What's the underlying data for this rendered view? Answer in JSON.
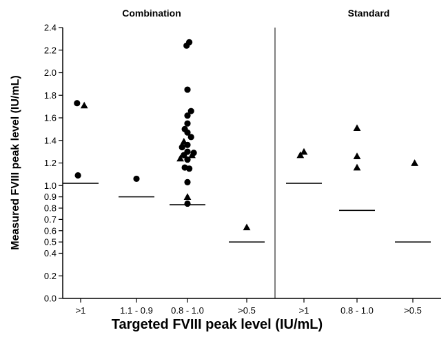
{
  "chart_data": {
    "type": "scatter",
    "title": "",
    "xlabel": "Targeted FVIII peak level (IU/mL)",
    "ylabel": "Measured  FVIII peak level (IU/mL)",
    "panels": [
      "Combination",
      "Standard"
    ],
    "categories": [
      ">1",
      "1.1 - 0.9",
      "0.8 - 1.0",
      ">0.5",
      ">1",
      "0.8 - 1.0",
      ">0.5"
    ],
    "yticks": [
      "0.0",
      "0.2",
      "0.4",
      "0.5",
      "0.6",
      "0.7",
      "0.8",
      "0.9",
      "1.0",
      "1.2",
      "1.4",
      "1.6",
      "1.8",
      "2.0",
      "2.2",
      "2.4"
    ],
    "ytick_values": [
      0.0,
      0.2,
      0.4,
      0.5,
      0.6,
      0.7,
      0.8,
      0.9,
      1.0,
      1.2,
      1.4,
      1.6,
      1.8,
      2.0,
      2.2,
      2.4
    ],
    "ylim": [
      0,
      2.4
    ],
    "grid": false,
    "series": [
      {
        "marker": "circle",
        "points": [
          {
            "cat": 0,
            "y": 1.73,
            "dx": -0.4
          },
          {
            "cat": 0,
            "y": 1.09,
            "dx": -0.3
          },
          {
            "cat": 1,
            "y": 1.06,
            "dx": 0.0
          },
          {
            "cat": 2,
            "y": 2.24,
            "dx": -0.1
          },
          {
            "cat": 2,
            "y": 2.27,
            "dx": 0.2
          },
          {
            "cat": 2,
            "y": 1.85,
            "dx": 0.0
          },
          {
            "cat": 2,
            "y": 1.66,
            "dx": 0.4
          },
          {
            "cat": 2,
            "y": 1.62,
            "dx": 0.0
          },
          {
            "cat": 2,
            "y": 1.55,
            "dx": 0.0
          },
          {
            "cat": 2,
            "y": 1.5,
            "dx": -0.3
          },
          {
            "cat": 2,
            "y": 1.47,
            "dx": 0.0
          },
          {
            "cat": 2,
            "y": 1.43,
            "dx": 0.4
          },
          {
            "cat": 2,
            "y": 1.36,
            "dx": 0.0
          },
          {
            "cat": 2,
            "y": 1.34,
            "dx": -0.6
          },
          {
            "cat": 2,
            "y": 1.3,
            "dx": 0.0
          },
          {
            "cat": 2,
            "y": 1.29,
            "dx": 0.7
          },
          {
            "cat": 2,
            "y": 1.27,
            "dx": -0.4
          },
          {
            "cat": 2,
            "y": 1.23,
            "dx": 0.0
          },
          {
            "cat": 2,
            "y": 1.16,
            "dx": -0.3
          },
          {
            "cat": 2,
            "y": 1.15,
            "dx": 0.2
          },
          {
            "cat": 2,
            "y": 1.03,
            "dx": 0.0
          },
          {
            "cat": 2,
            "y": 0.84,
            "dx": 0.0
          }
        ]
      },
      {
        "marker": "triangle",
        "points": [
          {
            "cat": 0,
            "y": 1.71,
            "dx": 0.4
          },
          {
            "cat": 2,
            "y": 1.39,
            "dx": -0.4
          },
          {
            "cat": 2,
            "y": 1.24,
            "dx": -0.8
          },
          {
            "cat": 2,
            "y": 1.27,
            "dx": 0.5
          },
          {
            "cat": 2,
            "y": 0.9,
            "dx": 0.0
          },
          {
            "cat": 3,
            "y": 0.63,
            "dx": 0.0
          },
          {
            "cat": 4,
            "y": 1.27,
            "dx": -0.4
          },
          {
            "cat": 4,
            "y": 1.3,
            "dx": 0.0
          },
          {
            "cat": 5,
            "y": 1.51,
            "dx": 0.0
          },
          {
            "cat": 5,
            "y": 1.26,
            "dx": 0.0
          },
          {
            "cat": 5,
            "y": 1.16,
            "dx": 0.0
          },
          {
            "cat": 6,
            "y": 1.2,
            "dx": 0.2
          }
        ]
      }
    ],
    "medians": [
      {
        "cat": 0,
        "y": 1.02
      },
      {
        "cat": 1,
        "y": 0.9
      },
      {
        "cat": 2,
        "y": 0.83
      },
      {
        "cat": 3,
        "y": 0.5
      },
      {
        "cat": 4,
        "y": 1.02
      },
      {
        "cat": 5,
        "y": 0.78
      },
      {
        "cat": 6,
        "y": 0.5
      }
    ]
  }
}
